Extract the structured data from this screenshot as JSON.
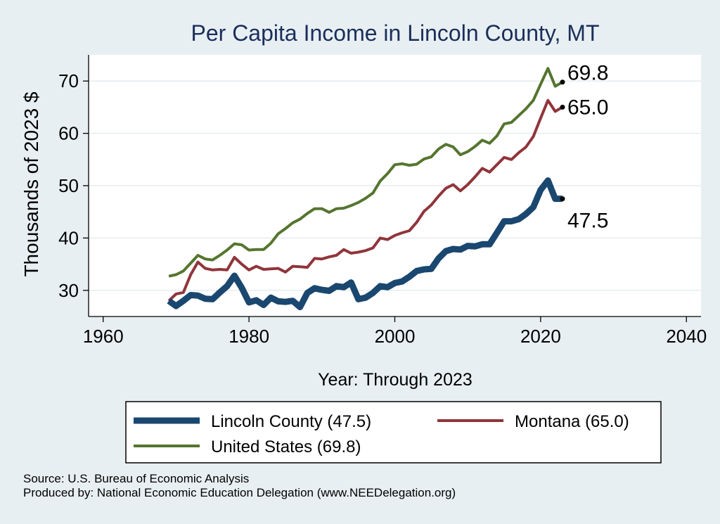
{
  "chart_data": {
    "type": "line",
    "title": "Per Capita Income in Lincoln County, MT",
    "xlabel": "Year: Through 2023",
    "ylabel": "Thousands of 2023 $",
    "xlim": [
      1958,
      2042
    ],
    "ylim": [
      25,
      75
    ],
    "xticks": [
      1960,
      1980,
      2000,
      2020,
      2040
    ],
    "yticks": [
      30,
      40,
      50,
      60,
      70
    ],
    "grid": true,
    "years": [
      1969,
      1970,
      1971,
      1972,
      1973,
      1974,
      1975,
      1976,
      1977,
      1978,
      1979,
      1980,
      1981,
      1982,
      1983,
      1984,
      1985,
      1986,
      1987,
      1988,
      1989,
      1990,
      1991,
      1992,
      1993,
      1994,
      1995,
      1996,
      1997,
      1998,
      1999,
      2000,
      2001,
      2002,
      2003,
      2004,
      2005,
      2006,
      2007,
      2008,
      2009,
      2010,
      2011,
      2012,
      2013,
      2014,
      2015,
      2016,
      2017,
      2018,
      2019,
      2020,
      2021,
      2022,
      2023
    ],
    "series": [
      {
        "name": "Lincoln County",
        "legend_label": "Lincoln County (47.5)",
        "end_label": "47.5",
        "color": "#1a476f",
        "values": [
          28.0,
          27.0,
          28.0,
          29.1,
          29.0,
          28.4,
          28.3,
          29.6,
          30.8,
          32.8,
          30.5,
          27.7,
          28.1,
          27.2,
          28.6,
          27.9,
          27.8,
          28.0,
          26.8,
          29.5,
          30.4,
          30.1,
          29.9,
          30.8,
          30.6,
          31.5,
          28.3,
          28.6,
          29.5,
          30.8,
          30.6,
          31.4,
          31.7,
          32.6,
          33.7,
          34.0,
          34.1,
          36.1,
          37.5,
          37.9,
          37.8,
          38.5,
          38.4,
          38.8,
          38.8,
          41.0,
          43.2,
          43.2,
          43.6,
          44.6,
          45.9,
          49.2,
          51.0,
          47.5,
          47.5
        ]
      },
      {
        "name": "Montana",
        "legend_label": "Montana (65.0)",
        "end_label": "65.0",
        "color": "#90353b",
        "values": [
          28.0,
          29.3,
          29.6,
          33.0,
          35.4,
          34.2,
          33.9,
          34.0,
          33.9,
          36.3,
          35.0,
          33.9,
          34.6,
          34.0,
          34.1,
          34.2,
          33.5,
          34.6,
          34.5,
          34.4,
          36.1,
          36.0,
          36.4,
          36.7,
          37.8,
          37.1,
          37.3,
          37.6,
          38.1,
          40.0,
          39.7,
          40.5,
          41.0,
          41.4,
          43.0,
          45.1,
          46.3,
          48.0,
          49.5,
          50.2,
          49.0,
          50.2,
          51.7,
          53.3,
          52.6,
          54.0,
          55.4,
          55.0,
          56.3,
          57.4,
          59.4,
          62.9,
          66.3,
          64.2,
          65.0
        ]
      },
      {
        "name": "United States",
        "legend_label": "United States (69.8)",
        "end_label": "69.8",
        "color": "#55752f",
        "values": [
          32.7,
          33.0,
          33.7,
          35.2,
          36.7,
          36.0,
          35.8,
          36.7,
          37.7,
          38.9,
          38.7,
          37.7,
          37.8,
          37.8,
          39.0,
          40.8,
          41.8,
          42.9,
          43.6,
          44.7,
          45.6,
          45.6,
          44.9,
          45.6,
          45.7,
          46.2,
          46.8,
          47.6,
          48.6,
          50.9,
          52.3,
          54.0,
          54.2,
          53.9,
          54.1,
          55.1,
          55.5,
          57.0,
          57.9,
          57.4,
          55.9,
          56.5,
          57.5,
          58.7,
          58.1,
          59.5,
          61.8,
          62.1,
          63.4,
          64.7,
          66.3,
          69.4,
          72.4,
          69.0,
          69.8
        ]
      }
    ],
    "legend_position": "bottom"
  },
  "source_note": "Source: U.S. Bureau of Economic Analysis",
  "producer_note": "Produced by: National Economic Education Delegation (www.NEEDelegation.org)"
}
